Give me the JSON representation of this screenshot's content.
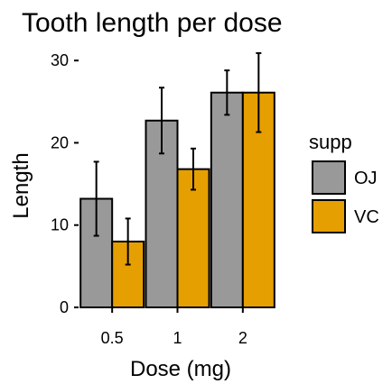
{
  "chart_data": {
    "type": "bar",
    "title": "Tooth length per dose",
    "xlabel": "Dose (mg)",
    "ylabel": "Length",
    "categories": [
      "0.5",
      "1",
      "2"
    ],
    "ylim": [
      0,
      31
    ],
    "yticks": [
      0,
      10,
      20,
      30
    ],
    "grid": false,
    "legend": {
      "title": "supp",
      "placement": "right"
    },
    "series": [
      {
        "name": "OJ",
        "color": "#999999",
        "values": [
          13.2,
          22.7,
          26.1
        ],
        "error": [
          4.5,
          4.0,
          2.7
        ]
      },
      {
        "name": "VC",
        "color": "#E69F00",
        "values": [
          8.0,
          16.8,
          26.1
        ],
        "error": [
          2.8,
          2.5,
          4.8
        ]
      }
    ]
  }
}
